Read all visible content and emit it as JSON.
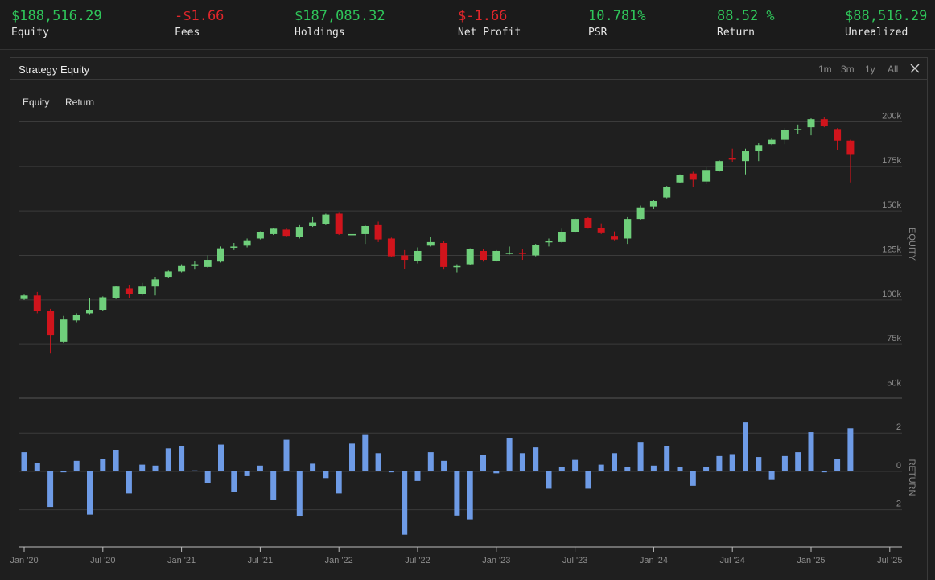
{
  "stats": [
    {
      "value": "$188,516.29",
      "label": "Equity",
      "tone": "pos"
    },
    {
      "value": "-$1.66",
      "label": "Fees",
      "tone": "neg"
    },
    {
      "value": "$187,085.32",
      "label": "Holdings",
      "tone": "pos"
    },
    {
      "value": "$-1.66",
      "label": "Net Profit",
      "tone": "neg"
    },
    {
      "value": "10.781%",
      "label": "PSR",
      "tone": "pos"
    },
    {
      "value": "88.52 %",
      "label": "Return",
      "tone": "pos"
    },
    {
      "value": "$88,516.29",
      "label": "Unrealized",
      "tone": "pos"
    }
  ],
  "panel": {
    "title": "Strategy Equity",
    "ranges": [
      "1m",
      "3m",
      "1y",
      "All"
    ],
    "series_tabs": [
      "Equity",
      "Return"
    ]
  },
  "colors": {
    "up": "#6fcf7b",
    "down": "#d0141c",
    "bar": "#6e9be6",
    "grid": "#3b3b3b",
    "axis_text": "#8c8c8c"
  },
  "chart_data": [
    {
      "type": "candlestick",
      "ylabel": "EQUITY",
      "ylim": [
        43000,
        207000
      ],
      "yticks": [
        50000,
        75000,
        100000,
        125000,
        150000,
        175000,
        200000
      ],
      "ytick_labels": [
        "50k",
        "75k",
        "100k",
        "125k",
        "150k",
        "175k",
        "200k"
      ],
      "x_start": "2020-01",
      "candles": [
        {
          "o": 100500,
          "c": 102500,
          "h": 103000,
          "l": 100000
        },
        {
          "o": 102500,
          "c": 94000,
          "h": 104500,
          "l": 92500
        },
        {
          "o": 94000,
          "c": 80000,
          "h": 95000,
          "l": 70000
        },
        {
          "o": 76500,
          "c": 89000,
          "h": 91000,
          "l": 75500
        },
        {
          "o": 88500,
          "c": 91500,
          "h": 92500,
          "l": 87500
        },
        {
          "o": 92500,
          "c": 94500,
          "h": 101000,
          "l": 92000
        },
        {
          "o": 94500,
          "c": 101500,
          "h": 102000,
          "l": 94000
        },
        {
          "o": 101000,
          "c": 107500,
          "h": 108000,
          "l": 100500
        },
        {
          "o": 106500,
          "c": 103500,
          "h": 108500,
          "l": 101000
        },
        {
          "o": 103500,
          "c": 107500,
          "h": 109500,
          "l": 102500
        },
        {
          "o": 107500,
          "c": 111500,
          "h": 113000,
          "l": 102500
        },
        {
          "o": 113000,
          "c": 116000,
          "h": 116500,
          "l": 112500
        },
        {
          "o": 116000,
          "c": 119000,
          "h": 120000,
          "l": 115500
        },
        {
          "o": 119000,
          "c": 120000,
          "h": 122000,
          "l": 117000
        },
        {
          "o": 118500,
          "c": 122500,
          "h": 125000,
          "l": 118000
        },
        {
          "o": 121500,
          "c": 129000,
          "h": 130000,
          "l": 121000
        },
        {
          "o": 129500,
          "c": 130000,
          "h": 132000,
          "l": 128000
        },
        {
          "o": 130500,
          "c": 133500,
          "h": 134500,
          "l": 129500
        },
        {
          "o": 134500,
          "c": 138000,
          "h": 138500,
          "l": 134000
        },
        {
          "o": 137000,
          "c": 140000,
          "h": 140500,
          "l": 136500
        },
        {
          "o": 139500,
          "c": 136000,
          "h": 140500,
          "l": 135500
        },
        {
          "o": 135500,
          "c": 141000,
          "h": 142000,
          "l": 134500
        },
        {
          "o": 141500,
          "c": 143500,
          "h": 146500,
          "l": 141000
        },
        {
          "o": 142500,
          "c": 148000,
          "h": 148500,
          "l": 142000
        },
        {
          "o": 148500,
          "c": 137000,
          "h": 149000,
          "l": 136500
        },
        {
          "o": 136500,
          "c": 137000,
          "h": 141000,
          "l": 132500
        },
        {
          "o": 137000,
          "c": 141500,
          "h": 142000,
          "l": 131500
        },
        {
          "o": 142000,
          "c": 134000,
          "h": 144000,
          "l": 132500
        },
        {
          "o": 134500,
          "c": 124500,
          "h": 135000,
          "l": 124000
        },
        {
          "o": 125000,
          "c": 122500,
          "h": 128000,
          "l": 117500
        },
        {
          "o": 122000,
          "c": 127500,
          "h": 129500,
          "l": 120500
        },
        {
          "o": 130500,
          "c": 132500,
          "h": 135500,
          "l": 130000
        },
        {
          "o": 132000,
          "c": 118500,
          "h": 133000,
          "l": 117000
        },
        {
          "o": 118500,
          "c": 119000,
          "h": 120000,
          "l": 115500
        },
        {
          "o": 120000,
          "c": 128500,
          "h": 129000,
          "l": 119500
        },
        {
          "o": 127500,
          "c": 122500,
          "h": 128500,
          "l": 121500
        },
        {
          "o": 122000,
          "c": 127500,
          "h": 128000,
          "l": 121500
        },
        {
          "o": 126000,
          "c": 126500,
          "h": 130000,
          "l": 125500
        },
        {
          "o": 126500,
          "c": 126000,
          "h": 128500,
          "l": 122500
        },
        {
          "o": 125000,
          "c": 131000,
          "h": 131500,
          "l": 124500
        },
        {
          "o": 132500,
          "c": 133000,
          "h": 134500,
          "l": 130000
        },
        {
          "o": 132500,
          "c": 138000,
          "h": 140000,
          "l": 132000
        },
        {
          "o": 138000,
          "c": 145500,
          "h": 146000,
          "l": 137500
        },
        {
          "o": 146000,
          "c": 140500,
          "h": 146500,
          "l": 140000
        },
        {
          "o": 140500,
          "c": 137500,
          "h": 143000,
          "l": 137000
        },
        {
          "o": 136000,
          "c": 134000,
          "h": 138500,
          "l": 133500
        },
        {
          "o": 134500,
          "c": 145500,
          "h": 146500,
          "l": 131500
        },
        {
          "o": 145500,
          "c": 152000,
          "h": 153000,
          "l": 145000
        },
        {
          "o": 152500,
          "c": 155500,
          "h": 156000,
          "l": 151000
        },
        {
          "o": 157500,
          "c": 163500,
          "h": 164000,
          "l": 157000
        },
        {
          "o": 166000,
          "c": 170000,
          "h": 170500,
          "l": 165500
        },
        {
          "o": 171000,
          "c": 167500,
          "h": 172000,
          "l": 163500
        },
        {
          "o": 166500,
          "c": 173000,
          "h": 174500,
          "l": 165000
        },
        {
          "o": 172500,
          "c": 178000,
          "h": 178500,
          "l": 172000
        },
        {
          "o": 179500,
          "c": 179000,
          "h": 185000,
          "l": 177500
        },
        {
          "o": 178000,
          "c": 183500,
          "h": 185000,
          "l": 170500
        },
        {
          "o": 183500,
          "c": 187000,
          "h": 188000,
          "l": 178000
        },
        {
          "o": 187500,
          "c": 190000,
          "h": 191000,
          "l": 187000
        },
        {
          "o": 190000,
          "c": 195500,
          "h": 196500,
          "l": 187500
        },
        {
          "o": 195500,
          "c": 196000,
          "h": 198500,
          "l": 193000
        },
        {
          "o": 197000,
          "c": 201500,
          "h": 202000,
          "l": 192500
        },
        {
          "o": 201500,
          "c": 197500,
          "h": 202500,
          "l": 197000
        },
        {
          "o": 196000,
          "c": 189500,
          "h": 196500,
          "l": 184000
        },
        {
          "o": 189500,
          "c": 181500,
          "h": 190000,
          "l": 166000
        }
      ]
    },
    {
      "type": "bar",
      "ylabel": "RETURN",
      "ylim": [
        -3.9,
        3.1
      ],
      "yticks": [
        -2,
        0,
        2
      ],
      "ytick_labels": [
        "-2",
        "0",
        "2"
      ],
      "values": [
        1.0,
        0.45,
        -1.85,
        -0.05,
        0.55,
        -2.25,
        0.65,
        1.1,
        -1.15,
        0.35,
        0.3,
        1.2,
        1.3,
        0.05,
        -0.6,
        1.4,
        -1.05,
        -0.25,
        0.3,
        -1.5,
        1.65,
        -2.35,
        0.4,
        -0.35,
        -1.15,
        1.45,
        1.9,
        0.95,
        -0.05,
        -3.3,
        -0.5,
        1.0,
        0.55,
        -2.3,
        -2.5,
        0.85,
        -0.1,
        1.75,
        0.95,
        1.25,
        -0.9,
        0.25,
        0.6,
        -0.9,
        0.35,
        0.95,
        0.25,
        1.5,
        0.3,
        1.3,
        0.25,
        -0.75,
        0.25,
        0.8,
        0.9,
        2.55,
        0.75,
        -0.45,
        0.8,
        1.0,
        2.05,
        -0.05,
        0.65,
        2.25
      ]
    }
  ],
  "x_axis": {
    "ticks": [
      {
        "label": "Jan '20",
        "index": 0
      },
      {
        "label": "Jul '20",
        "index": 6
      },
      {
        "label": "Jan '21",
        "index": 12
      },
      {
        "label": "Jul '21",
        "index": 18
      },
      {
        "label": "Jan '22",
        "index": 24
      },
      {
        "label": "Jul '22",
        "index": 30
      },
      {
        "label": "Jan '23",
        "index": 36
      },
      {
        "label": "Jul '23",
        "index": 42
      },
      {
        "label": "Jan '24",
        "index": 48
      },
      {
        "label": "Jul '24",
        "index": 54
      },
      {
        "label": "Jan '25",
        "index": 60
      },
      {
        "label": "Jul '25",
        "index": 66
      }
    ]
  }
}
